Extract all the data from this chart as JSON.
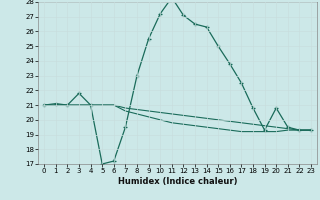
{
  "title": "",
  "xlabel": "Humidex (Indice chaleur)",
  "xlim": [
    -0.5,
    23.5
  ],
  "ylim": [
    17,
    28
  ],
  "yticks": [
    17,
    18,
    19,
    20,
    21,
    22,
    23,
    24,
    25,
    26,
    27,
    28
  ],
  "xticks": [
    0,
    1,
    2,
    3,
    4,
    5,
    6,
    7,
    8,
    9,
    10,
    11,
    12,
    13,
    14,
    15,
    16,
    17,
    18,
    19,
    20,
    21,
    22,
    23
  ],
  "bg_color": "#cce8e8",
  "grid_color": "#b0d4d4",
  "line_color": "#1a6b5a",
  "line1_x": [
    0,
    1,
    2,
    3,
    4,
    5,
    6,
    7,
    8,
    9,
    10,
    11,
    12,
    13,
    14,
    15,
    16,
    17,
    18,
    19,
    20,
    21,
    22,
    23
  ],
  "line1_y": [
    21.0,
    21.1,
    21.0,
    21.8,
    21.0,
    17.0,
    17.2,
    19.5,
    23.0,
    25.5,
    27.2,
    28.3,
    27.1,
    26.5,
    26.3,
    25.0,
    23.8,
    22.5,
    20.8,
    19.3,
    20.8,
    19.5,
    19.3,
    19.3
  ],
  "line2_x": [
    0,
    1,
    2,
    3,
    4,
    5,
    6,
    7,
    8,
    9,
    10,
    11,
    12,
    13,
    14,
    15,
    16,
    17,
    18,
    19,
    20,
    21,
    22,
    23
  ],
  "line2_y": [
    21.0,
    21.0,
    21.0,
    21.0,
    21.0,
    21.0,
    21.0,
    20.8,
    20.7,
    20.6,
    20.5,
    20.4,
    20.3,
    20.2,
    20.1,
    20.0,
    19.9,
    19.8,
    19.7,
    19.6,
    19.5,
    19.4,
    19.3,
    19.3
  ],
  "line3_x": [
    0,
    1,
    2,
    3,
    4,
    5,
    6,
    7,
    8,
    9,
    10,
    11,
    12,
    13,
    14,
    15,
    16,
    17,
    18,
    19,
    20,
    21,
    22,
    23
  ],
  "line3_y": [
    21.0,
    21.0,
    21.0,
    21.0,
    21.0,
    21.0,
    21.0,
    20.6,
    20.4,
    20.2,
    20.0,
    19.8,
    19.7,
    19.6,
    19.5,
    19.4,
    19.3,
    19.2,
    19.2,
    19.2,
    19.2,
    19.3,
    19.3,
    19.3
  ]
}
